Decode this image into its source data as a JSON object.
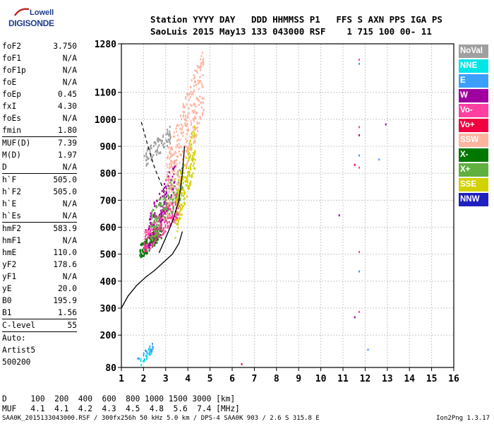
{
  "logo": {
    "line1": "Lowell",
    "line2": "DIGISONDE"
  },
  "header": {
    "line1": "Station YYYY DAY   DDD HHMMSS P1   FFS S AXN PPS IGA PS",
    "line2": "SaoLuis 2015 May13 133 043000 RSF    1 715 100 00- 11"
  },
  "params": [
    {
      "k": "foF2",
      "v": "3.750"
    },
    {
      "k": "foF1",
      "v": "N/A"
    },
    {
      "k": "foF1p",
      "v": "N/A"
    },
    {
      "k": "foE",
      "v": "N/A"
    },
    {
      "k": "foEp",
      "v": "0.45"
    },
    {
      "k": "fxI",
      "v": "4.30"
    },
    {
      "k": "foEs",
      "v": "N/A"
    },
    {
      "k": "fmin",
      "v": "1.80"
    },
    {
      "sep": true
    },
    {
      "k": "MUF(D)",
      "v": "7.39"
    },
    {
      "k": "M(D)",
      "v": "1.97"
    },
    {
      "k": "D",
      "v": "N/A"
    },
    {
      "sep": true
    },
    {
      "k": "h`F",
      "v": "505.0"
    },
    {
      "k": "h`F2",
      "v": "505.0"
    },
    {
      "k": "h`E",
      "v": "N/A"
    },
    {
      "k": "h`Es",
      "v": "N/A"
    },
    {
      "sep": true
    },
    {
      "k": "hmF2",
      "v": "583.9"
    },
    {
      "k": "hmF1",
      "v": "N/A"
    },
    {
      "k": "hmE",
      "v": "110.0"
    },
    {
      "k": "yF2",
      "v": "178.6"
    },
    {
      "k": "yF1",
      "v": "N/A"
    },
    {
      "k": "yE",
      "v": "20.0"
    },
    {
      "k": "B0",
      "v": "195.9"
    },
    {
      "k": "B1",
      "v": "1.56"
    },
    {
      "sep": true
    },
    {
      "k": "C-level",
      "v": "55"
    },
    {
      "sep": true
    },
    {
      "k": "Auto:",
      "v": ""
    },
    {
      "k": "Artist5",
      "v": ""
    },
    {
      "k": "500200",
      "v": ""
    }
  ],
  "legend": [
    {
      "label": "NoVal",
      "color": "#a0a0a0"
    },
    {
      "label": "NNE",
      "color": "#00e6e6"
    },
    {
      "label": "E",
      "color": "#3ba0ff"
    },
    {
      "label": "W",
      "color": "#a000a0"
    },
    {
      "label": "Vo-",
      "color": "#ff40a0"
    },
    {
      "label": "Vo+",
      "color": "#f00040"
    },
    {
      "label": "SSW",
      "color": "#ffb4a0"
    },
    {
      "label": "X-",
      "color": "#007800"
    },
    {
      "label": "X+",
      "color": "#60b040"
    },
    {
      "label": "SSE",
      "color": "#d2d200"
    },
    {
      "label": "NNW",
      "color": "#2020c0"
    }
  ],
  "dist_table": {
    "d_label": "D",
    "d_values": [
      "100",
      "200",
      "400",
      "600",
      "800",
      "1000",
      "1500",
      "3000"
    ],
    "d_unit": "[km]",
    "muf_label": "MUF",
    "muf_values": [
      "4.1",
      "4.1",
      "4.2",
      "4.3",
      "4.5",
      "4.8",
      "5.6",
      "7.4"
    ],
    "muf_unit": "[MHz]"
  },
  "footer": "SAA0K_2015133043000.RSF / 300fx256h 50 kHz 5.0 km / DPS-4 SAA0K 903 / 2.6 S 315.8 E",
  "version": "Ion2Png 1.3.17",
  "chart_data": {
    "type": "scatter",
    "title": "",
    "xlabel": "",
    "ylabel": "",
    "xlim": [
      1,
      16
    ],
    "ylim": [
      80,
      1280
    ],
    "x_ticks": [
      1,
      2,
      3,
      4,
      5,
      6,
      7,
      8,
      9,
      10,
      11,
      12,
      13,
      14,
      15,
      16
    ],
    "y_ticks": [
      80,
      200,
      300,
      400,
      500,
      600,
      700,
      800,
      900,
      1000,
      1100,
      1280
    ],
    "grid": true,
    "profile_curve": {
      "name": "",
      "x": [
        1.0,
        1.3,
        1.7,
        2.1,
        2.5,
        2.9,
        3.3,
        3.6,
        3.75
      ],
      "y": [
        300,
        345,
        385,
        415,
        440,
        470,
        500,
        540,
        584
      ]
    },
    "trace_curve": {
      "x": [
        2.7,
        3.0,
        3.3,
        3.6,
        3.75,
        3.85
      ],
      "y": [
        505,
        560,
        620,
        700,
        800,
        900
      ]
    },
    "extraordinary_curve": {
      "x": [
        1.9,
        2.2,
        2.5,
        2.8,
        3.0
      ],
      "y": [
        990,
        900,
        820,
        760,
        720
      ]
    },
    "echo_clusters": [
      {
        "color": "#007800",
        "x": [
          1.8,
          2.8
        ],
        "y": [
          480,
          620
        ],
        "n": 160
      },
      {
        "color": "#ff40a0",
        "x": [
          2.0,
          3.6
        ],
        "y": [
          500,
          740
        ],
        "n": 220
      },
      {
        "color": "#a000a0",
        "x": [
          2.2,
          3.4
        ],
        "y": [
          520,
          860
        ],
        "n": 120
      },
      {
        "color": "#60b040",
        "x": [
          2.3,
          3.8
        ],
        "y": [
          540,
          850
        ],
        "n": 140
      },
      {
        "color": "#d2d200",
        "x": [
          3.4,
          4.3
        ],
        "y": [
          560,
          1000
        ],
        "n": 180
      },
      {
        "color": "#ffb4a0",
        "x": [
          3.0,
          4.7
        ],
        "y": [
          620,
          1280
        ],
        "n": 320
      },
      {
        "color": "#a0a0a0",
        "x": [
          2.0,
          3.2
        ],
        "y": [
          820,
          980
        ],
        "n": 80
      },
      {
        "color": "#3ba0ff",
        "x": [
          1.7,
          2.4
        ],
        "y": [
          82,
          180
        ],
        "n": 25
      },
      {
        "color": "#00e6e6",
        "x": [
          1.8,
          2.3
        ],
        "y": [
          84,
          160
        ],
        "n": 15
      }
    ],
    "isolated_points": [
      {
        "x": 11.7,
        "y": 1225,
        "color": "#ff40a0"
      },
      {
        "x": 11.7,
        "y": 1210,
        "color": "#3ba0ff"
      },
      {
        "x": 11.7,
        "y": 975,
        "color": "#ff40a0"
      },
      {
        "x": 11.7,
        "y": 945,
        "color": "#f00040"
      },
      {
        "x": 12.9,
        "y": 985,
        "color": "#a000a0"
      },
      {
        "x": 11.7,
        "y": 870,
        "color": "#3ba0ff"
      },
      {
        "x": 11.5,
        "y": 835,
        "color": "#f00040"
      },
      {
        "x": 11.7,
        "y": 825,
        "color": "#ff40a0"
      },
      {
        "x": 12.6,
        "y": 855,
        "color": "#3ba0ff"
      },
      {
        "x": 10.8,
        "y": 648,
        "color": "#a000a0"
      },
      {
        "x": 11.7,
        "y": 512,
        "color": "#ff40a0"
      },
      {
        "x": 11.7,
        "y": 440,
        "color": "#3ba0ff"
      },
      {
        "x": 11.7,
        "y": 290,
        "color": "#ff40a0"
      },
      {
        "x": 11.5,
        "y": 270,
        "color": "#a000a0"
      },
      {
        "x": 6.4,
        "y": 96,
        "color": "#f00040"
      },
      {
        "x": 12.1,
        "y": 150,
        "color": "#3ba0ff"
      }
    ]
  }
}
